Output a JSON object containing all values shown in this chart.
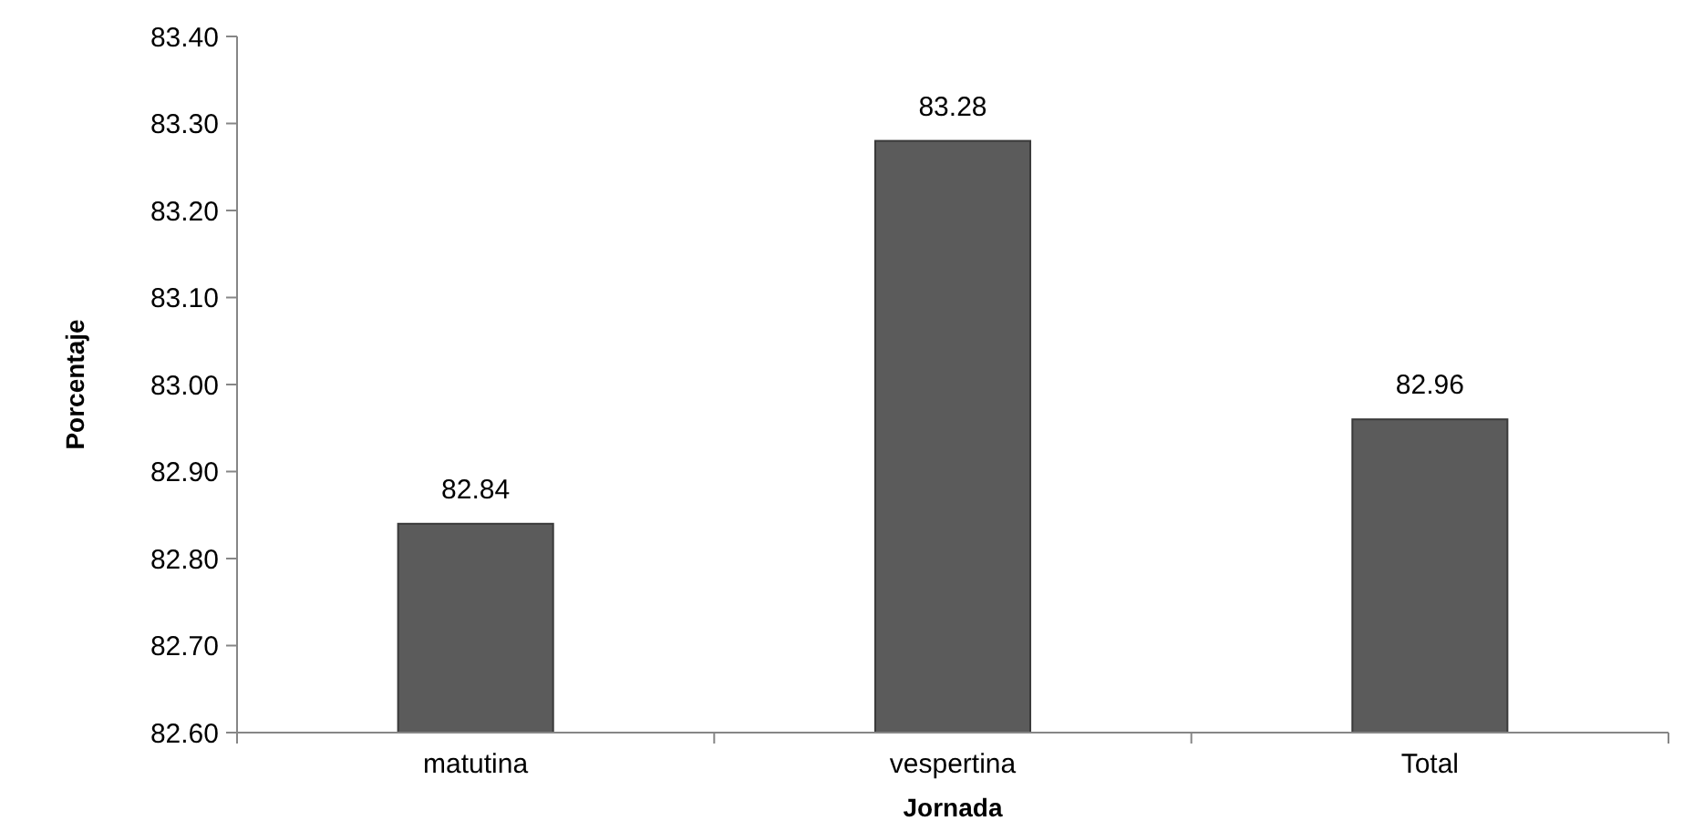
{
  "chart_data": {
    "type": "bar",
    "xlabel": "Jornada",
    "ylabel": "Porcentaje",
    "categories": [
      "matutina",
      "vespertina",
      "Total"
    ],
    "values": [
      82.84,
      83.28,
      82.96
    ],
    "color": "#5b5b5b",
    "ylim": [
      82.6,
      83.4
    ],
    "yticks": [
      {
        "value": 82.6,
        "label": "82.60"
      },
      {
        "value": 82.7,
        "label": "82.70"
      },
      {
        "value": 82.8,
        "label": "82.80"
      },
      {
        "value": 82.9,
        "label": "82.90"
      },
      {
        "value": 83.0,
        "label": "83.00"
      },
      {
        "value": 83.1,
        "label": "83.10"
      },
      {
        "value": 83.2,
        "label": "83.20"
      },
      {
        "value": 83.3,
        "label": "83.30"
      },
      {
        "value": 83.4,
        "label": "83.40"
      }
    ],
    "grid": false,
    "data_labels": true
  }
}
